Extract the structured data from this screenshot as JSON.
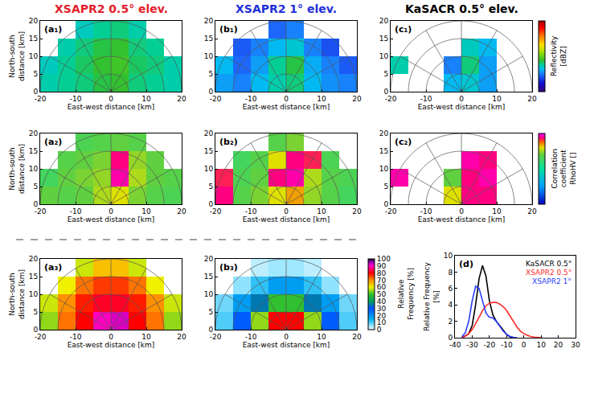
{
  "chart_data": [
    {
      "type": "heatmap",
      "label": "(a₁)",
      "title": "XSAPR2 0.5° elev.",
      "color": "#e3202a",
      "x": [
        -17.5,
        -12.5,
        -7.5,
        -2.5,
        2.5,
        7.5,
        12.5,
        17.5
      ],
      "y": [
        2.5,
        7.5,
        12.5,
        17.5
      ],
      "z": [
        [
          -14,
          -13,
          -12,
          -10,
          -9,
          -12,
          -13,
          -14
        ],
        [
          -15,
          -13,
          -11,
          -9,
          -8,
          -11,
          -12,
          -14
        ],
        [
          null,
          -14,
          -12,
          -10,
          -9,
          -12,
          -13,
          null
        ],
        [
          null,
          null,
          -15,
          -13,
          -12,
          -14,
          null,
          null
        ]
      ],
      "zlim": [
        -40,
        30
      ],
      "xlim": [
        -20,
        20
      ],
      "xticks": [
        -20,
        -10,
        0,
        10,
        20
      ],
      "ylim": [
        0,
        20
      ],
      "yticks": [
        0,
        5,
        10,
        15,
        20
      ],
      "xlabel": "East-west distance [km]",
      "ylabel": "North-south distance [km]"
    },
    {
      "type": "heatmap",
      "label": "(b₁)",
      "title": "XSAPR2 1° elev.",
      "color": "#1f2fd8",
      "x": [
        -17.5,
        -12.5,
        -7.5,
        -2.5,
        2.5,
        7.5,
        12.5,
        17.5
      ],
      "y": [
        2.5,
        7.5,
        12.5,
        17.5
      ],
      "z": [
        [
          -20,
          -22,
          -18,
          -14,
          -12,
          -18,
          -21,
          -22
        ],
        [
          -18,
          -24,
          -20,
          -13,
          -10,
          -19,
          -22,
          -25
        ],
        [
          null,
          -25,
          -22,
          -18,
          -16,
          -22,
          -26,
          null
        ],
        [
          null,
          null,
          null,
          -24,
          -22,
          null,
          null,
          null
        ]
      ],
      "zlim": [
        -40,
        30
      ],
      "xlim": [
        -20,
        20
      ],
      "xticks": [
        -20,
        -10,
        0,
        10,
        20
      ],
      "ylim": [
        0,
        20
      ],
      "yticks": [
        0,
        5,
        10,
        15,
        20
      ],
      "xlabel": "East-west distance [km]"
    },
    {
      "type": "heatmap",
      "label": "(c₁)",
      "title": "KaSACR 0.5° elev.",
      "color": "#000000",
      "x": [
        -17.5,
        -12.5,
        -7.5,
        -2.5,
        2.5,
        7.5,
        12.5,
        17.5
      ],
      "y": [
        2.5,
        7.5,
        12.5,
        17.5
      ],
      "z": [
        [
          null,
          null,
          null,
          -18,
          -16,
          -20,
          null,
          null
        ],
        [
          -14,
          null,
          null,
          -22,
          -12,
          -20,
          null,
          null
        ],
        [
          null,
          null,
          null,
          null,
          -15,
          -18,
          null,
          null
        ],
        [
          null,
          null,
          null,
          null,
          null,
          null,
          null,
          null
        ]
      ],
      "zlim": [
        -40,
        30
      ],
      "colorbar": {
        "title": "Reflectivity [dBZ]",
        "ticks": []
      },
      "xlim": [
        -20,
        20
      ],
      "xticks": [
        -20,
        -10,
        0,
        10,
        20
      ],
      "ylim": [
        0,
        20
      ],
      "yticks": [
        0,
        5,
        10,
        15,
        20
      ],
      "xlabel": "East-west distance [km]"
    },
    {
      "type": "heatmap",
      "label": "(a₂)",
      "x": [
        -17.5,
        -12.5,
        -7.5,
        -2.5,
        2.5,
        7.5,
        12.5,
        17.5
      ],
      "y": [
        2.5,
        7.5,
        12.5,
        17.5
      ],
      "z": [
        [
          0.85,
          0.84,
          0.85,
          0.88,
          0.9,
          0.86,
          0.84,
          0.83
        ],
        [
          0.82,
          0.85,
          0.86,
          0.87,
          0.98,
          0.88,
          0.85,
          0.84
        ],
        [
          null,
          0.84,
          0.85,
          0.86,
          0.97,
          0.87,
          0.85,
          null
        ],
        [
          null,
          null,
          0.83,
          0.84,
          0.85,
          0.84,
          null,
          null
        ]
      ],
      "zlim": [
        0.5,
        1.0
      ],
      "xlim": [
        -20,
        20
      ],
      "xticks": [
        -20,
        -10,
        0,
        10,
        20
      ],
      "ylim": [
        0,
        20
      ],
      "yticks": [
        0,
        5,
        10,
        15,
        20
      ],
      "xlabel": "East-west distance [km]",
      "ylabel": "North-south distance [km]"
    },
    {
      "type": "heatmap",
      "label": "(b₂)",
      "x": [
        -17.5,
        -12.5,
        -7.5,
        -2.5,
        2.5,
        7.5,
        12.5,
        17.5
      ],
      "y": [
        2.5,
        7.5,
        12.5,
        17.5
      ],
      "z": [
        [
          0.97,
          0.84,
          0.86,
          0.9,
          0.92,
          0.87,
          0.84,
          0.82
        ],
        [
          0.96,
          0.83,
          0.85,
          0.97,
          0.98,
          0.88,
          0.84,
          0.83
        ],
        [
          null,
          0.82,
          0.84,
          0.9,
          0.97,
          0.96,
          0.83,
          null
        ],
        [
          null,
          null,
          null,
          0.84,
          0.86,
          null,
          null,
          null
        ]
      ],
      "zlim": [
        0.5,
        1.0
      ],
      "xlim": [
        -20,
        20
      ],
      "xticks": [
        -20,
        -10,
        0,
        10,
        20
      ],
      "ylim": [
        0,
        20
      ],
      "yticks": [
        0,
        5,
        10,
        15,
        20
      ],
      "xlabel": "East-west distance [km]"
    },
    {
      "type": "heatmap",
      "label": "(c₂)",
      "x": [
        -17.5,
        -12.5,
        -7.5,
        -2.5,
        2.5,
        7.5,
        12.5,
        17.5
      ],
      "y": [
        2.5,
        7.5,
        12.5,
        17.5
      ],
      "z": [
        [
          null,
          null,
          null,
          0.9,
          0.97,
          0.97,
          null,
          null
        ],
        [
          0.98,
          null,
          null,
          0.85,
          0.97,
          0.98,
          null,
          null
        ],
        [
          null,
          null,
          null,
          null,
          0.98,
          0.97,
          null,
          null
        ],
        [
          null,
          null,
          null,
          null,
          null,
          null,
          null,
          null
        ]
      ],
      "zlim": [
        0.5,
        1.0
      ],
      "colorbar": {
        "title": "Correlation coefficient RhoHV []",
        "ticks": []
      },
      "xlim": [
        -20,
        20
      ],
      "xticks": [
        -20,
        -10,
        0,
        10,
        20
      ],
      "ylim": [
        0,
        20
      ],
      "yticks": [
        0,
        5,
        10,
        15,
        20
      ],
      "xlabel": "East-west distance [km]"
    },
    {
      "type": "heatmap",
      "label": "(a₃)",
      "x": [
        -17.5,
        -12.5,
        -7.5,
        -2.5,
        2.5,
        7.5,
        12.5,
        17.5
      ],
      "y": [
        2.5,
        7.5,
        12.5,
        17.5
      ],
      "z": [
        [
          55,
          72,
          80,
          90,
          92,
          80,
          72,
          55
        ],
        [
          58,
          70,
          78,
          82,
          82,
          78,
          70,
          58
        ],
        [
          null,
          60,
          72,
          76,
          76,
          72,
          60,
          null
        ],
        [
          null,
          null,
          58,
          65,
          65,
          58,
          null,
          null
        ]
      ],
      "zlim": [
        0,
        100
      ],
      "xlim": [
        -20,
        20
      ],
      "xticks": [
        -20,
        -10,
        0,
        10,
        20
      ],
      "ylim": [
        0,
        20
      ],
      "yticks": [
        0,
        5,
        10,
        15,
        20
      ],
      "xlabel": "East-west distance [km]",
      "ylabel": "North-south distance [km]"
    },
    {
      "type": "heatmap",
      "label": "(b₃)",
      "x": [
        -17.5,
        -12.5,
        -7.5,
        -2.5,
        2.5,
        7.5,
        12.5,
        17.5
      ],
      "y": [
        2.5,
        7.5,
        12.5,
        17.5
      ],
      "z": [
        [
          10,
          28,
          55,
          80,
          80,
          55,
          28,
          10
        ],
        [
          8,
          18,
          35,
          50,
          50,
          35,
          18,
          8
        ],
        [
          null,
          6,
          12,
          18,
          18,
          12,
          6,
          null
        ],
        [
          null,
          null,
          3,
          5,
          5,
          3,
          null,
          null
        ]
      ],
      "zlim": [
        0,
        100
      ],
      "colorbar": {
        "title": "Relative Frequency [%]",
        "ticks": [
          0,
          10,
          20,
          30,
          40,
          50,
          60,
          70,
          80,
          90,
          100
        ]
      },
      "xlim": [
        -20,
        20
      ],
      "xticks": [
        -20,
        -10,
        0,
        10,
        20
      ],
      "ylim": [
        0,
        20
      ],
      "yticks": [
        0,
        5,
        10,
        15,
        20
      ],
      "xlabel": "East-west distance [km]"
    },
    {
      "type": "line",
      "label": "(d)",
      "ylabel": "Relative Frequency [%]",
      "x": [
        -40,
        -38,
        -36,
        -34,
        -32,
        -30,
        -28,
        -26,
        -24,
        -22,
        -20,
        -18,
        -16,
        -14,
        -12,
        -10,
        -8,
        -6,
        -4,
        -2,
        0,
        2,
        4,
        6,
        8,
        10,
        12,
        14,
        16,
        18,
        20,
        22,
        24,
        26,
        28,
        30
      ],
      "series": [
        {
          "name": "KaSACR 0.5°",
          "color": "#000000",
          "values": [
            null,
            null,
            0,
            0.2,
            0.5,
            1.5,
            4.0,
            7.2,
            8.8,
            7.5,
            4.5,
            2.8,
            2.0,
            1.5,
            0.9,
            0.4,
            0.1,
            0,
            null,
            null,
            null,
            null,
            null,
            null,
            null,
            null,
            null,
            null,
            null,
            null,
            null,
            null,
            null,
            null,
            null,
            null
          ]
        },
        {
          "name": "XSAPR2 0.5°",
          "color": "#ff2a2a",
          "values": [
            null,
            null,
            0.05,
            0.2,
            0.5,
            1.0,
            1.7,
            2.5,
            3.3,
            3.9,
            4.2,
            4.3,
            4.3,
            4.1,
            3.8,
            3.3,
            2.6,
            1.9,
            1.3,
            0.8,
            0.5,
            0.3,
            0.15,
            0.08,
            0.03,
            0,
            null,
            null,
            null,
            null,
            null,
            null,
            null,
            null,
            null,
            null
          ]
        },
        {
          "name": "XSAPR2 1°",
          "color": "#2a3cff",
          "values": [
            null,
            null,
            0.1,
            0.6,
            2.0,
            4.5,
            6.3,
            6.0,
            4.5,
            3.0,
            2.5,
            2.4,
            2.0,
            1.4,
            0.8,
            0.4,
            0.15,
            0.05,
            0,
            null,
            null,
            null,
            null,
            null,
            null,
            null,
            null,
            null,
            null,
            null,
            null,
            null,
            null,
            null,
            null,
            null
          ]
        }
      ],
      "xlim": [
        -40,
        30
      ],
      "xticks": [
        -40,
        -30,
        -20,
        -10,
        0,
        10,
        20,
        30
      ],
      "ylim": [
        0,
        10
      ],
      "yticks": [
        0,
        2,
        4,
        6,
        8,
        10
      ],
      "legend": "upper right"
    }
  ]
}
